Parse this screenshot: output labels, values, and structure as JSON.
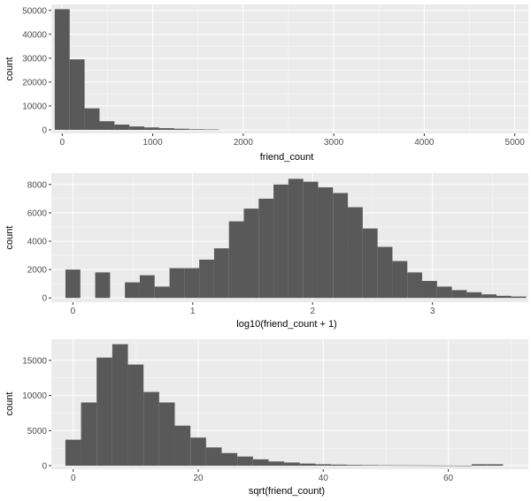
{
  "colors": {
    "panel_background": "#ebebeb",
    "grid_major": "#ffffff",
    "bar_fill": "#595959",
    "tick_text": "#4d4d4d"
  },
  "chart_data": [
    {
      "type": "bar",
      "xlabel": "friend_count",
      "ylabel": "count",
      "xlim": [
        -120,
        5150
      ],
      "ylim": [
        -1500,
        52500
      ],
      "grid": true,
      "xticks": [
        0,
        1000,
        2000,
        3000,
        4000,
        5000
      ],
      "yticks": [
        0,
        10000,
        20000,
        30000,
        40000,
        50000
      ],
      "binwidth": 165,
      "bin_centers": [
        0,
        165,
        330,
        495,
        660,
        825,
        990,
        1155,
        1320,
        1485,
        1650
      ],
      "values": [
        50500,
        29500,
        9000,
        3600,
        2200,
        1400,
        1000,
        700,
        450,
        250,
        150
      ]
    },
    {
      "type": "bar",
      "xlabel": "log10(friend_count + 1)",
      "ylabel": "count",
      "xlim": [
        -0.18,
        3.8
      ],
      "ylim": [
        -300,
        8800
      ],
      "grid": true,
      "xticks": [
        0,
        1,
        2,
        3
      ],
      "yticks": [
        0,
        2000,
        4000,
        6000,
        8000
      ],
      "binwidth": 0.124,
      "bin_centers": [
        0.0,
        0.124,
        0.248,
        0.372,
        0.496,
        0.62,
        0.744,
        0.868,
        0.992,
        1.116,
        1.24,
        1.364,
        1.488,
        1.612,
        1.736,
        1.86,
        1.984,
        2.108,
        2.232,
        2.356,
        2.48,
        2.604,
        2.728,
        2.852,
        2.976,
        3.1,
        3.224,
        3.348,
        3.472,
        3.596,
        3.72
      ],
      "values": [
        2000,
        0,
        1800,
        0,
        1100,
        1600,
        800,
        2100,
        2100,
        2700,
        3500,
        5400,
        6300,
        7000,
        8000,
        8400,
        8200,
        7800,
        7400,
        6400,
        4900,
        3600,
        2600,
        1800,
        1200,
        800,
        550,
        400,
        250,
        150,
        100
      ]
    },
    {
      "type": "bar",
      "xlabel": "sqrt(friend_count)",
      "ylabel": "count",
      "xlim": [
        -3.5,
        72.8
      ],
      "ylim": [
        -500,
        18000
      ],
      "grid": true,
      "xticks": [
        0,
        20,
        40,
        60
      ],
      "yticks": [
        0,
        5000,
        10000,
        15000
      ],
      "binwidth": 2.5,
      "bin_centers": [
        0,
        2.5,
        5,
        7.5,
        10,
        12.5,
        15,
        17.5,
        20,
        22.5,
        25,
        27.5,
        30,
        32.5,
        35,
        37.5,
        40,
        42.5,
        45,
        47.5,
        50,
        52.5,
        55,
        57.5,
        60,
        62.5,
        65,
        67.5
      ],
      "values": [
        3700,
        9000,
        15400,
        17300,
        14400,
        10500,
        9000,
        5700,
        4000,
        2600,
        1800,
        1300,
        900,
        600,
        450,
        300,
        200,
        150,
        100,
        80,
        60,
        50,
        40,
        30,
        20,
        10,
        200,
        200
      ]
    }
  ]
}
